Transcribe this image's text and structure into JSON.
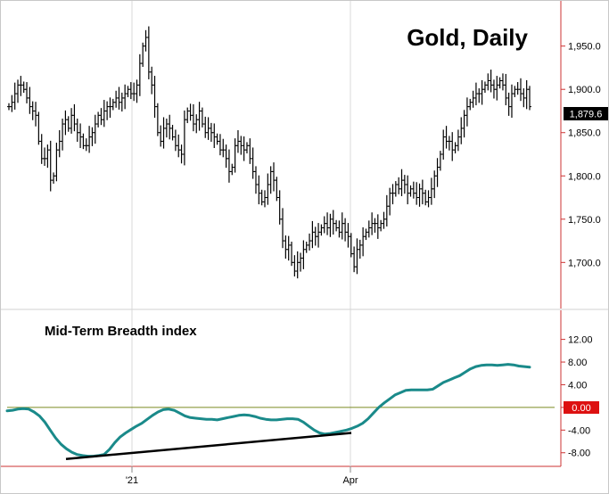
{
  "chart_data": [
    {
      "type": "ohlc",
      "title": "Gold, Daily",
      "ylim": [
        1655,
        1995
      ],
      "y_ticks": [
        "1,950.0",
        "1,900.0",
        "1,850.0",
        "1,800.0",
        "1,750.0",
        "1,700.0"
      ],
      "y_tick_values": [
        1950,
        1900,
        1850,
        1800,
        1750,
        1700
      ],
      "last_price_label": "1,879.6",
      "last_price": 1879.6,
      "x_ticks": [
        "'21",
        "Apr"
      ],
      "closes": [
        1880,
        1885,
        1895,
        1905,
        1905,
        1900,
        1890,
        1880,
        1875,
        1870,
        1840,
        1820,
        1820,
        1830,
        1795,
        1800,
        1830,
        1840,
        1860,
        1865,
        1855,
        1870,
        1860,
        1850,
        1845,
        1835,
        1835,
        1845,
        1850,
        1860,
        1870,
        1865,
        1875,
        1880,
        1880,
        1885,
        1890,
        1885,
        1890,
        1895,
        1900,
        1895,
        1895,
        1905,
        1930,
        1950,
        1960,
        1920,
        1905,
        1880,
        1850,
        1840,
        1855,
        1860,
        1855,
        1845,
        1835,
        1830,
        1825,
        1865,
        1875,
        1870,
        1860,
        1865,
        1875,
        1860,
        1850,
        1855,
        1850,
        1845,
        1840,
        1830,
        1830,
        1820,
        1805,
        1810,
        1835,
        1840,
        1835,
        1830,
        1835,
        1820,
        1805,
        1790,
        1780,
        1770,
        1775,
        1790,
        1805,
        1795,
        1775,
        1750,
        1725,
        1715,
        1720,
        1700,
        1690,
        1700,
        1705,
        1715,
        1720,
        1725,
        1735,
        1730,
        1735,
        1740,
        1745,
        1740,
        1750,
        1745,
        1740,
        1735,
        1745,
        1735,
        1730,
        1710,
        1695,
        1715,
        1720,
        1730,
        1735,
        1740,
        1745,
        1745,
        1740,
        1745,
        1750,
        1765,
        1780,
        1780,
        1790,
        1785,
        1795,
        1790,
        1780,
        1785,
        1780,
        1775,
        1785,
        1780,
        1770,
        1775,
        1785,
        1800,
        1810,
        1825,
        1845,
        1840,
        1840,
        1830,
        1835,
        1845,
        1855,
        1870,
        1880,
        1885,
        1890,
        1895,
        1895,
        1900,
        1905,
        1910,
        1905,
        1900,
        1905,
        1910,
        1905,
        1890,
        1880,
        1895,
        1900,
        1900,
        1895,
        1890,
        1900,
        1880
      ]
    },
    {
      "type": "line",
      "title": "Mid-Term Breadth index",
      "ylim": [
        -10.4,
        16.5
      ],
      "y_ticks": [
        "12.00",
        "8.00",
        "4.00",
        "0.00",
        "-4.00",
        "-8.00"
      ],
      "y_tick_values": [
        12,
        8,
        4,
        0,
        -4,
        -8
      ],
      "zero_label": "0.00",
      "x_ticks": [
        "'21",
        "Apr"
      ],
      "series": [
        {
          "color": "#1a8a8a",
          "values": [
            -0.6,
            -0.5,
            -0.3,
            -0.2,
            -0.3,
            -0.8,
            -1.5,
            -2.6,
            -4.0,
            -5.4,
            -6.5,
            -7.3,
            -7.9,
            -8.3,
            -8.5,
            -8.6,
            -8.6,
            -8.5,
            -8.3,
            -7.4,
            -6.2,
            -5.2,
            -4.5,
            -3.9,
            -3.3,
            -2.8,
            -2.1,
            -1.4,
            -0.8,
            -0.4,
            -0.3,
            -0.5,
            -1.0,
            -1.5,
            -1.8,
            -1.9,
            -2.0,
            -2.1,
            -2.1,
            -2.2,
            -2.0,
            -1.8,
            -1.6,
            -1.4,
            -1.3,
            -1.4,
            -1.6,
            -1.9,
            -2.1,
            -2.2,
            -2.2,
            -2.1,
            -2.0,
            -2.0,
            -2.1,
            -2.6,
            -3.3,
            -4.0,
            -4.5,
            -4.7,
            -4.6,
            -4.4,
            -4.2,
            -4.0,
            -3.7,
            -3.3,
            -2.8,
            -2.0,
            -1.0,
            0.0,
            0.8,
            1.5,
            2.2,
            2.6,
            3.0,
            3.1,
            3.1,
            3.1,
            3.1,
            3.2,
            3.8,
            4.4,
            4.8,
            5.2,
            5.6,
            6.2,
            6.8,
            7.2,
            7.4,
            7.5,
            7.5,
            7.4,
            7.5,
            7.6,
            7.5,
            7.3,
            7.2,
            7.1
          ]
        }
      ],
      "reference_line": 0,
      "trendline": {
        "from": [
          -9.1
        ],
        "to": [
          -4.5
        ]
      }
    }
  ]
}
